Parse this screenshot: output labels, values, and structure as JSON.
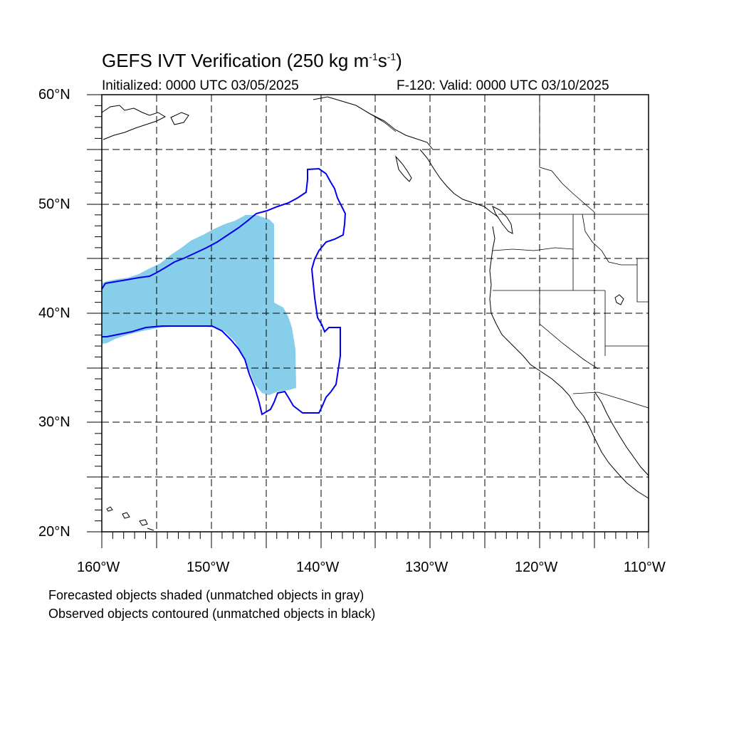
{
  "title": {
    "main": "GEFS IVT Verification (250 kg m",
    "exp1": "-1",
    "mid": "s",
    "exp2": "-1",
    "end": ")"
  },
  "subtitle_left": "Initialized: 0000 UTC 03/05/2025",
  "subtitle_right": "F-120: Valid: 0000 UTC 03/10/2025",
  "lat_labels": [
    "60°N",
    "50°N",
    "40°N",
    "30°N",
    "20°N"
  ],
  "lon_labels": [
    "160°W",
    "150°W",
    "140°W",
    "130°W",
    "120°W",
    "110°W"
  ],
  "footnotes": [
    "Forecasted objects shaded (unmatched objects in gray)",
    "Observed objects contoured (unmatched objects in black)"
  ],
  "colors": {
    "forecast_fill": "#87ceeb",
    "observed_contour": "#0000ee",
    "coastline": "#000000",
    "grid": "#000000"
  },
  "map_extent": {
    "lon": [
      -160,
      -110
    ],
    "lat": [
      20,
      60
    ]
  }
}
